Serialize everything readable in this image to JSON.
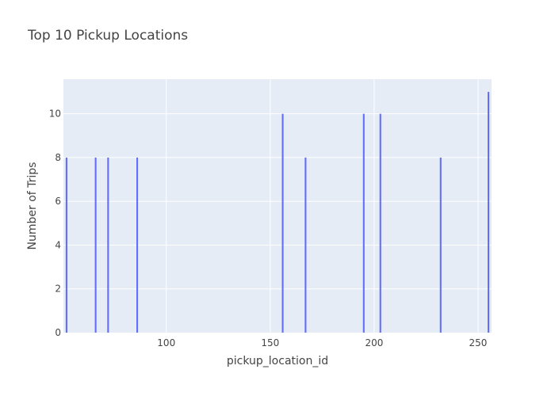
{
  "chart_data": {
    "type": "bar",
    "title": "Top 10 Pickup Locations",
    "xlabel": "pickup_location_id",
    "ylabel": "Number of Trips",
    "x": [
      52,
      66,
      72,
      86,
      156,
      167,
      195,
      203,
      232,
      255
    ],
    "values": [
      8,
      8,
      8,
      8,
      10,
      8,
      10,
      10,
      8,
      11
    ],
    "xlim": [
      50.5,
      256.5
    ],
    "ylim": [
      0,
      11.58
    ],
    "xticks": [
      100,
      150,
      200,
      250
    ],
    "yticks": [
      0,
      2,
      4,
      6,
      8,
      10
    ],
    "grid": true,
    "bar_color": "#636efa",
    "plot_bg": "#e5ecf6"
  }
}
